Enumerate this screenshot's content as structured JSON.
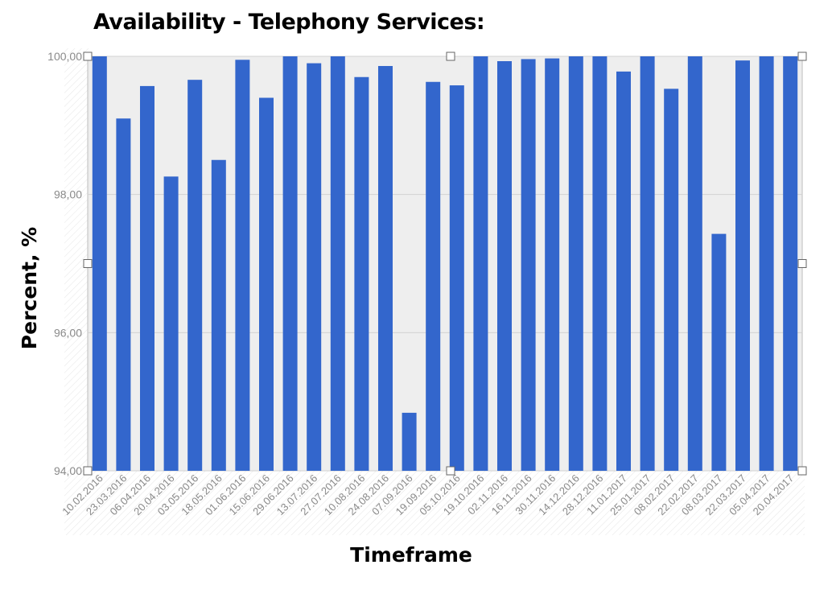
{
  "chart_data": {
    "type": "bar",
    "title": "Availability - Telephony Services:",
    "xlabel": "Timeframe",
    "ylabel": "Percent, %",
    "ylim": [
      94,
      100
    ],
    "yticks": [
      "94,00",
      "96,00",
      "98,00",
      "100,00"
    ],
    "grid": true,
    "legend": "none",
    "bar_color": "#3366cc",
    "plot_background": "#eeeeee",
    "categories": [
      "10.02.2016",
      "23.03.2016",
      "06.04.2016",
      "20.04.2016",
      "03.05.2016",
      "18.05.2016",
      "01.06.2016",
      "15.06.2016",
      "29.06.2016",
      "13.07.2016",
      "27.07.2016",
      "10.08.2016",
      "24.08.2016",
      "07.09.2016",
      "19.09.2016",
      "05.10.2016",
      "19.10.2016",
      "02.11.2016",
      "16.11.2016",
      "30.11.2016",
      "14.12.2016",
      "28.12.2016",
      "11.01.2017",
      "25.01.2017",
      "08.02.2017",
      "22.02.2017",
      "08.03.2017",
      "22.03.2017",
      "05.04.2017",
      "20.04.2017"
    ],
    "values": [
      100.0,
      99.1,
      99.57,
      98.26,
      99.66,
      98.5,
      99.95,
      99.4,
      100.0,
      99.9,
      100.0,
      99.7,
      99.86,
      94.84,
      99.63,
      99.58,
      100.0,
      99.93,
      99.96,
      99.97,
      100.0,
      100.0,
      99.78,
      100.0,
      99.53,
      100.0,
      97.43,
      99.94,
      100.0,
      100.0
    ]
  }
}
